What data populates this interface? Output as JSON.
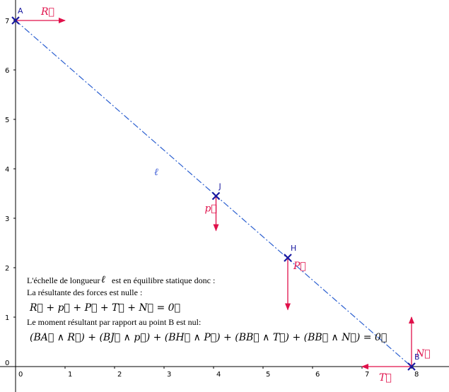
{
  "points": [
    {
      "id": "A",
      "label": "A",
      "x": 0,
      "y": 7
    },
    {
      "id": "J",
      "label": "J",
      "x": 4.05,
      "y": 3.45
    },
    {
      "id": "H",
      "label": "H",
      "x": 5.5,
      "y": 2.2
    },
    {
      "id": "B",
      "label": "B",
      "x": 8,
      "y": 0
    }
  ],
  "segment_label": "ℓ",
  "forces": [
    {
      "id": "R",
      "label": "R⃗",
      "from": [
        0,
        7
      ],
      "to": [
        1,
        7
      ]
    },
    {
      "id": "p",
      "label": "p⃗",
      "from": [
        4.05,
        3.45
      ],
      "to": [
        4.05,
        2.75
      ]
    },
    {
      "id": "P",
      "label": "P⃗",
      "from": [
        5.5,
        2.2
      ],
      "to": [
        5.5,
        1.15
      ]
    },
    {
      "id": "T",
      "label": "T⃗",
      "from": [
        8,
        0
      ],
      "to": [
        7,
        0
      ]
    },
    {
      "id": "N",
      "label": "N⃗",
      "from": [
        8,
        0
      ],
      "to": [
        8,
        1
      ]
    }
  ],
  "x_ticks": [
    "0",
    "1",
    "2",
    "3",
    "4",
    "5",
    "6",
    "7",
    "8"
  ],
  "y_ticks": [
    "0",
    "1",
    "2",
    "3",
    "4",
    "5",
    "6",
    "7"
  ],
  "text_lines": {
    "line1_a": "L'échelle de longueur",
    "line1_ell": "ℓ",
    "line1_b": "est en équilibre statique donc :",
    "line2": "La résultante des forces est nulle :",
    "line3": "R⃗ + p⃗ + P⃗ + T⃗ + N⃗ = 0⃗",
    "line4": "Le moment résultant par rapport au point B est nul:",
    "line5": "(BA⃗ ∧ R⃗) + (BJ⃗ ∧ p⃗) + (BH⃗ ∧ P⃗) + (BB⃗ ∧ T⃗) + (BB⃗ ∧ N⃗) = 0⃗"
  },
  "colors": {
    "point": "#1a1aa0",
    "segment": "#2b5fd0",
    "force": "#e0104a",
    "axis": "#000000"
  }
}
